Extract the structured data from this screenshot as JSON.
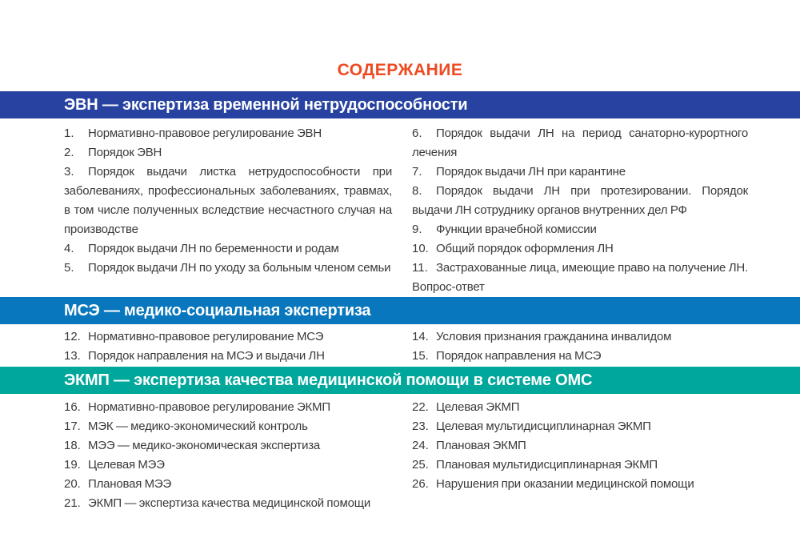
{
  "page": {
    "title": "СОДЕРЖАНИЕ"
  },
  "colors": {
    "title_orange": "#EE4A21",
    "bar_evn_blue": "#2742A0",
    "bar_mse_blue": "#0877BD",
    "bar_ekmp_teal": "#00A79B",
    "body_text": "#3A3A39"
  },
  "sections": [
    {
      "id": "evn",
      "header": "ЭВН — экспертиза временной нетрудоспособности",
      "left_items": [
        {
          "num": "1.",
          "text": "Нормативно-правовое регулирование ЭВН"
        },
        {
          "num": "2.",
          "text": "Порядок ЭВН"
        },
        {
          "num": "3.",
          "text": "Порядок выдачи листка нетрудоспособности при заболеваниях, профессиональных заболеваниях, травмах, в том числе полученных вследствие несчастного случая на производстве"
        },
        {
          "num": "4.",
          "text": "Порядок выдачи ЛН по беременности и родам"
        },
        {
          "num": "5.",
          "text": "Порядок выдачи ЛН по уходу за больным членом семьи"
        }
      ],
      "right_items": [
        {
          "num": "6.",
          "text": "Порядок выдачи ЛН на период санаторно-курортного лечения"
        },
        {
          "num": "7.",
          "text": "Порядок выдачи ЛН при карантине"
        },
        {
          "num": "8.",
          "text": "Порядок выдачи ЛН при протезировании. Порядок выдачи ЛН сотруднику органов внутренних дел РФ"
        },
        {
          "num": "9.",
          "text": "Функции врачебной комиссии"
        },
        {
          "num": "10.",
          "text": "Общий порядок оформления ЛН"
        },
        {
          "num": "11.",
          "text": "Застрахованные лица, имеющие право на получение ЛН. Вопрос-ответ"
        }
      ]
    },
    {
      "id": "mse",
      "header": "МСЭ — медико-социальная экспертиза",
      "left_items": [
        {
          "num": "12.",
          "text": "Нормативно-правовое регулирование МСЭ"
        },
        {
          "num": "13.",
          "text": "Порядок направления на МСЭ и выдачи ЛН"
        }
      ],
      "right_items": [
        {
          "num": "14.",
          "text": "Условия признания гражданина инвалидом"
        },
        {
          "num": "15.",
          "text": "Порядок направления на МСЭ"
        }
      ]
    },
    {
      "id": "ekmp",
      "header": "ЭКМП — экспертиза качества медицинской помощи в системе ОМС",
      "left_items": [
        {
          "num": "16.",
          "text": "Нормативно-правовое регулирование ЭКМП"
        },
        {
          "num": "17.",
          "text": "МЭК — медико-экономический контроль"
        },
        {
          "num": "18.",
          "text": "МЭЭ — медико-экономическая экспертиза"
        },
        {
          "num": "19.",
          "text": "Целевая МЭЭ"
        },
        {
          "num": "20.",
          "text": "Плановая МЭЭ"
        },
        {
          "num": "21.",
          "text": "ЭКМП — экспертиза качества медицинской помощи"
        }
      ],
      "right_items": [
        {
          "num": "22.",
          "text": "Целевая ЭКМП"
        },
        {
          "num": "23.",
          "text": "Целевая мультидисциплинарная ЭКМП"
        },
        {
          "num": "24.",
          "text": "Плановая ЭКМП"
        },
        {
          "num": "25.",
          "text": "Плановая мультидисциплинарная ЭКМП"
        },
        {
          "num": "26.",
          "text": "Нарушения при оказании медицинской помощи"
        }
      ]
    }
  ]
}
